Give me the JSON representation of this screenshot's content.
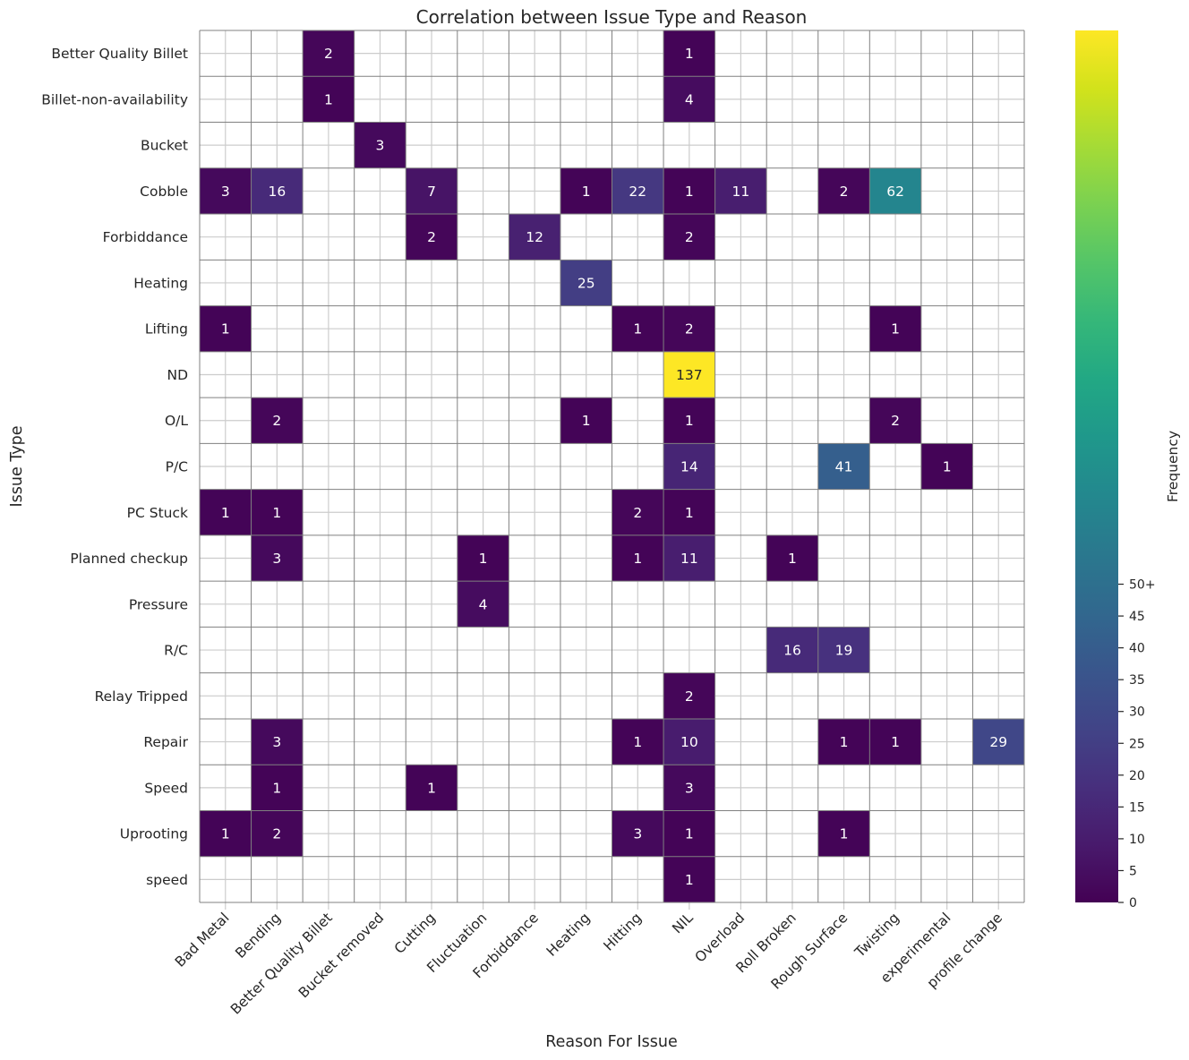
{
  "chart_data": {
    "type": "heatmap",
    "title": "Correlation between Issue Type and Reason",
    "xlabel": "Reason For Issue",
    "ylabel": "Issue Type",
    "x_categories": [
      "Bad Metal",
      "Bending",
      "Better Quality Billet",
      "Bucket removed",
      "Cutting",
      "Fluctuation",
      "Forbiddance",
      "Heating",
      "Hitting",
      "NIL",
      "Overload",
      "Roll Broken",
      "Rough Surface",
      "Twisting",
      "experimental",
      "profile change"
    ],
    "y_categories": [
      "Better Quality Billet",
      "Billet-non-availability",
      "Bucket",
      "Cobble",
      "Forbiddance",
      "Heating",
      "Lifting",
      "ND",
      "O/L",
      "P/C",
      "PC Stuck",
      "Planned checkup",
      "Pressure",
      "R/C",
      "Relay Tripped",
      "Repair",
      "Speed",
      "Uprooting",
      "speed"
    ],
    "values": [
      [
        null,
        null,
        2,
        null,
        null,
        null,
        null,
        null,
        null,
        1,
        null,
        null,
        null,
        null,
        null,
        null
      ],
      [
        null,
        null,
        1,
        null,
        null,
        null,
        null,
        null,
        null,
        4,
        null,
        null,
        null,
        null,
        null,
        null
      ],
      [
        null,
        null,
        null,
        3,
        null,
        null,
        null,
        null,
        null,
        null,
        null,
        null,
        null,
        null,
        null,
        null
      ],
      [
        3,
        16,
        null,
        null,
        7,
        null,
        null,
        1,
        22,
        1,
        11,
        null,
        2,
        62,
        null,
        null
      ],
      [
        null,
        null,
        null,
        null,
        2,
        null,
        12,
        null,
        null,
        2,
        null,
        null,
        null,
        null,
        null,
        null
      ],
      [
        null,
        null,
        null,
        null,
        null,
        null,
        null,
        25,
        null,
        null,
        null,
        null,
        null,
        null,
        null,
        null
      ],
      [
        1,
        null,
        null,
        null,
        null,
        null,
        null,
        null,
        1,
        2,
        null,
        null,
        null,
        1,
        null,
        null
      ],
      [
        null,
        null,
        null,
        null,
        null,
        null,
        null,
        null,
        null,
        137,
        null,
        null,
        null,
        null,
        null,
        null
      ],
      [
        null,
        2,
        null,
        null,
        null,
        null,
        null,
        1,
        null,
        1,
        null,
        null,
        null,
        2,
        null,
        null
      ],
      [
        null,
        null,
        null,
        null,
        null,
        null,
        null,
        null,
        null,
        14,
        null,
        null,
        41,
        null,
        1,
        null
      ],
      [
        1,
        1,
        null,
        null,
        null,
        null,
        null,
        null,
        2,
        1,
        null,
        null,
        null,
        null,
        null,
        null
      ],
      [
        null,
        3,
        null,
        null,
        null,
        1,
        null,
        null,
        1,
        11,
        null,
        1,
        null,
        null,
        null,
        null
      ],
      [
        null,
        null,
        null,
        null,
        null,
        4,
        null,
        null,
        null,
        null,
        null,
        null,
        null,
        null,
        null,
        null
      ],
      [
        null,
        null,
        null,
        null,
        null,
        null,
        null,
        null,
        null,
        null,
        null,
        16,
        19,
        null,
        null,
        null
      ],
      [
        null,
        null,
        null,
        null,
        null,
        null,
        null,
        null,
        null,
        2,
        null,
        null,
        null,
        null,
        null,
        null
      ],
      [
        null,
        3,
        null,
        null,
        null,
        null,
        null,
        null,
        1,
        10,
        null,
        null,
        1,
        1,
        null,
        29
      ],
      [
        null,
        1,
        null,
        null,
        1,
        null,
        null,
        null,
        null,
        3,
        null,
        null,
        null,
        null,
        null,
        null
      ],
      [
        1,
        2,
        null,
        null,
        null,
        null,
        null,
        null,
        3,
        1,
        null,
        null,
        1,
        null,
        null,
        null
      ],
      [
        null,
        null,
        null,
        null,
        null,
        null,
        null,
        null,
        null,
        1,
        null,
        null,
        null,
        null,
        null,
        null
      ]
    ],
    "colormap": "viridis",
    "vmin": 0,
    "vmax": 137,
    "annotations": true,
    "grid": true,
    "colorbar": {
      "label": "Frequency",
      "ticks": [
        0,
        5,
        10,
        15,
        20,
        25,
        30,
        35,
        40,
        45,
        50
      ],
      "tick_labels": [
        "0",
        "5",
        "10",
        "15",
        "20",
        "25",
        "30",
        "35",
        "40",
        "45",
        "50+"
      ],
      "placement": "right"
    }
  }
}
